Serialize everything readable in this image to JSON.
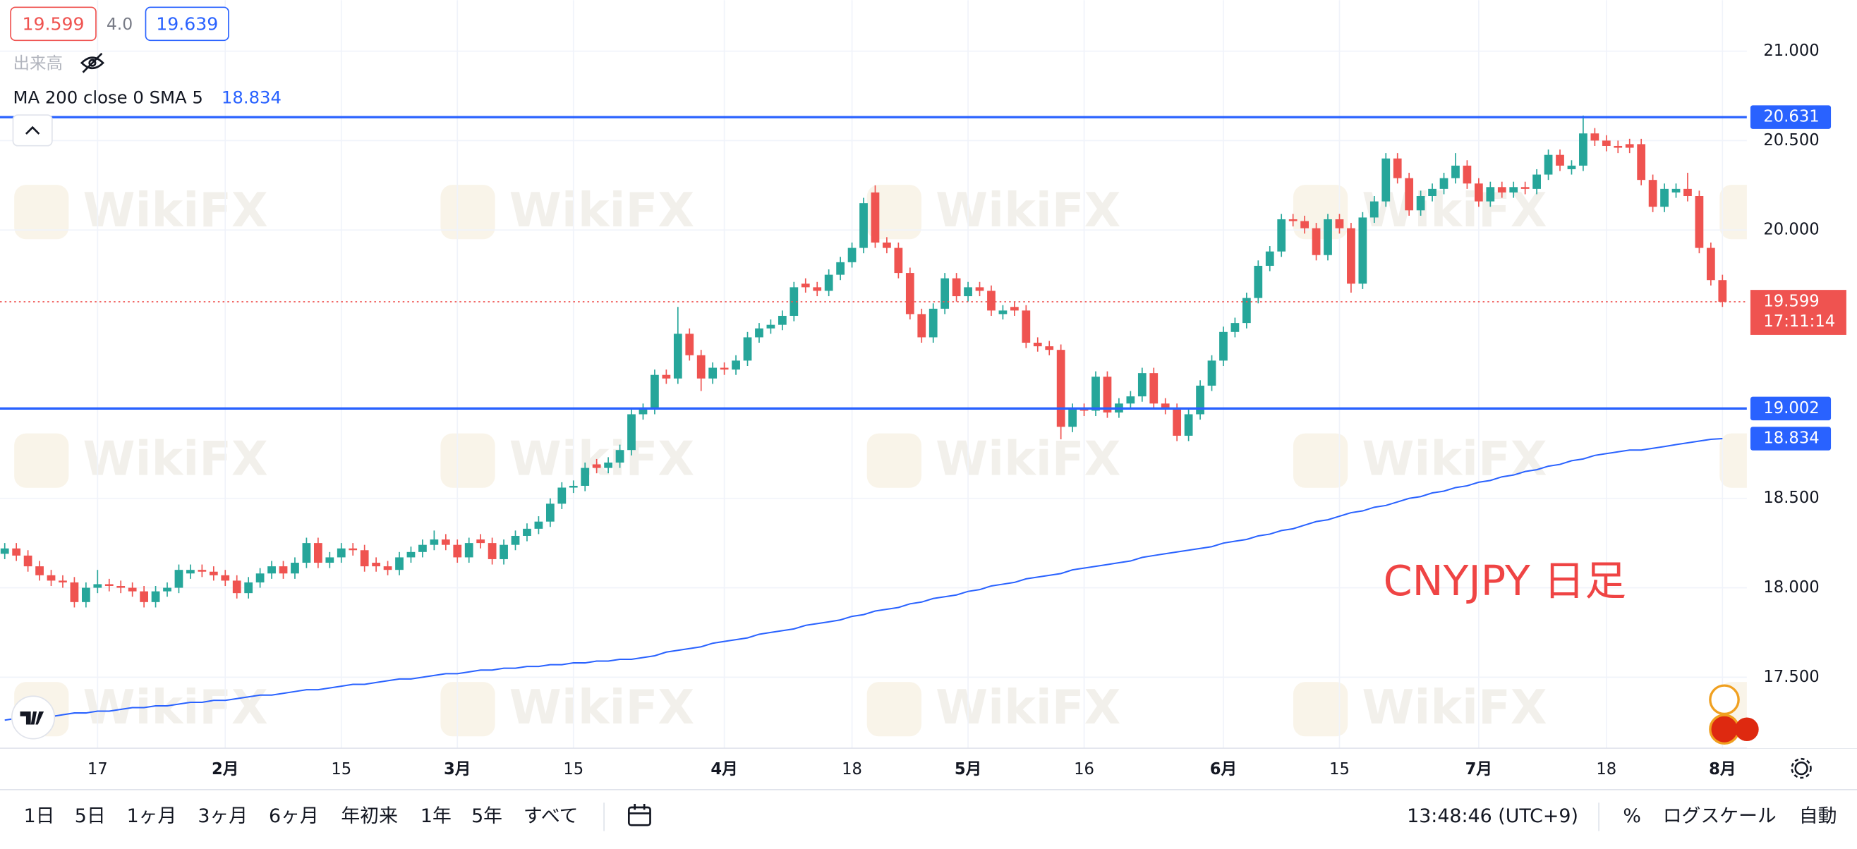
{
  "header": {
    "bid": "19.599",
    "spread": "4.0",
    "ask": "19.639",
    "volume_label": "出来高",
    "indicator_label": "MA 200 close 0 SMA 5",
    "indicator_value": "18.834"
  },
  "watermark": "WikiFX",
  "toolbar": {
    "ranges": [
      "1日",
      "5日",
      "1ヶ月",
      "3ヶ月",
      "6ヶ月",
      "年初来",
      "1年",
      "5年",
      "すべて"
    ],
    "time": "13:48:46 (UTC+9)",
    "percent": "%",
    "log": "ログスケール",
    "auto": "自動"
  },
  "chart_data": {
    "type": "candlestick",
    "annotation": "CNYJPY 日足",
    "up_color": "#26a69a",
    "down_color": "#ef5350",
    "grid": true,
    "ylim": [
      17.103,
      21.285
    ],
    "yticks": [
      {
        "value": 17.5,
        "label": "17.500"
      },
      {
        "value": 18,
        "label": "18.000"
      },
      {
        "value": 18.5,
        "label": "18.500"
      },
      {
        "value": 20,
        "label": "20.000"
      },
      {
        "value": 20.5,
        "label": "20.500"
      },
      {
        "value": 21,
        "label": "21.000"
      }
    ],
    "categories": [
      null,
      null,
      null,
      null,
      null,
      null,
      null,
      null,
      "17",
      null,
      null,
      null,
      null,
      null,
      null,
      null,
      null,
      null,
      null,
      "2月",
      null,
      null,
      null,
      null,
      null,
      null,
      null,
      null,
      null,
      "15",
      null,
      null,
      null,
      null,
      null,
      null,
      null,
      null,
      null,
      "3月",
      null,
      null,
      null,
      null,
      null,
      null,
      null,
      null,
      null,
      "15",
      null,
      null,
      null,
      null,
      null,
      null,
      null,
      null,
      null,
      null,
      null,
      null,
      "4月",
      null,
      null,
      null,
      null,
      null,
      null,
      null,
      null,
      null,
      null,
      "18",
      null,
      null,
      null,
      null,
      null,
      null,
      null,
      null,
      null,
      "5月",
      null,
      null,
      null,
      null,
      null,
      null,
      null,
      null,
      null,
      "16",
      null,
      null,
      null,
      null,
      null,
      null,
      null,
      null,
      null,
      null,
      null,
      "6月",
      null,
      null,
      null,
      null,
      null,
      null,
      null,
      null,
      null,
      "15",
      null,
      null,
      null,
      null,
      null,
      null,
      null,
      null,
      null,
      null,
      null,
      "7月",
      null,
      null,
      null,
      null,
      null,
      null,
      null,
      null,
      null,
      null,
      "18",
      null,
      null,
      null,
      null,
      null,
      null,
      null,
      null,
      null,
      "8月"
    ],
    "open": [
      18.19,
      18.22,
      18.18,
      18.12,
      18.07,
      18.04,
      18.03,
      17.92,
      18.0,
      18.02,
      18.01,
      18.0,
      17.98,
      17.92,
      17.98,
      18.0,
      18.08,
      18.1,
      18.09,
      18.07,
      18.04,
      17.97,
      18.03,
      18.08,
      18.12,
      18.08,
      18.14,
      18.25,
      18.14,
      18.17,
      18.22,
      18.21,
      18.14,
      18.12,
      18.1,
      18.17,
      18.2,
      18.24,
      18.27,
      18.24,
      18.17,
      18.27,
      18.25,
      18.16,
      18.24,
      18.29,
      18.33,
      18.37,
      18.47,
      18.56,
      18.57,
      18.69,
      18.67,
      18.7,
      18.77,
      18.97,
      19.0,
      19.19,
      19.17,
      19.42,
      19.3,
      19.17,
      19.23,
      19.22,
      19.27,
      19.4,
      19.45,
      19.47,
      19.52,
      19.7,
      19.68,
      19.66,
      19.75,
      19.82,
      19.9,
      20.21,
      19.93,
      19.9,
      19.76,
      19.53,
      19.4,
      19.56,
      19.73,
      19.63,
      19.68,
      19.66,
      19.53,
      19.57,
      19.55,
      19.37,
      19.35,
      19.33,
      18.9,
      19.0,
      18.99,
      19.18,
      18.98,
      19.03,
      19.07,
      19.2,
      19.03,
      19.0,
      18.85,
      18.97,
      19.13,
      19.27,
      19.43,
      19.48,
      19.62,
      19.8,
      19.88,
      20.06,
      20.05,
      20.01,
      19.86,
      20.06,
      20.01,
      19.7,
      20.07,
      20.16,
      20.4,
      20.29,
      20.11,
      20.19,
      20.23,
      20.29,
      20.36,
      20.26,
      20.16,
      20.24,
      20.21,
      20.24,
      20.23,
      20.31,
      20.42,
      20.34,
      20.36,
      20.54,
      20.5,
      20.47,
      20.48,
      20.48,
      20.28,
      20.13,
      20.21,
      20.23,
      20.19,
      19.9,
      19.72
    ],
    "high": [
      18.25,
      18.25,
      18.21,
      18.15,
      18.1,
      18.07,
      18.06,
      18.03,
      18.1,
      18.05,
      18.04,
      18.03,
      18.01,
      18.01,
      18.03,
      18.13,
      18.13,
      18.13,
      18.12,
      18.1,
      18.07,
      18.06,
      18.11,
      18.15,
      18.15,
      18.17,
      18.28,
      18.28,
      18.2,
      18.25,
      18.25,
      18.24,
      18.17,
      18.15,
      18.2,
      18.23,
      18.27,
      18.32,
      18.3,
      18.27,
      18.28,
      18.3,
      18.28,
      18.27,
      18.32,
      18.36,
      18.4,
      18.5,
      18.59,
      18.6,
      18.7,
      18.72,
      18.73,
      18.8,
      19.0,
      19.03,
      19.22,
      19.22,
      19.57,
      19.45,
      19.33,
      19.26,
      19.26,
      19.3,
      19.43,
      19.48,
      19.5,
      19.55,
      19.71,
      19.73,
      19.71,
      19.78,
      19.85,
      19.93,
      20.18,
      20.25,
      19.96,
      19.93,
      19.79,
      19.56,
      19.59,
      19.76,
      19.76,
      19.71,
      19.71,
      19.69,
      19.58,
      19.6,
      19.58,
      19.4,
      19.38,
      19.36,
      19.03,
      19.03,
      19.21,
      19.21,
      19.06,
      19.1,
      19.23,
      19.23,
      19.06,
      19.03,
      19.0,
      19.16,
      19.3,
      19.46,
      19.51,
      19.65,
      19.83,
      19.91,
      20.09,
      20.09,
      20.08,
      20.04,
      20.09,
      20.09,
      20.04,
      20.1,
      20.19,
      20.43,
      20.43,
      20.32,
      20.22,
      20.26,
      20.32,
      20.43,
      20.39,
      20.29,
      20.27,
      20.27,
      20.27,
      20.27,
      20.34,
      20.45,
      20.45,
      20.39,
      20.64,
      20.57,
      20.53,
      20.5,
      20.51,
      20.51,
      20.31,
      20.26,
      20.26,
      20.32,
      20.22,
      19.93,
      19.75
    ],
    "low": [
      18.16,
      18.15,
      18.09,
      18.04,
      18.01,
      18.0,
      17.89,
      17.89,
      17.97,
      17.98,
      17.97,
      17.95,
      17.89,
      17.89,
      17.95,
      17.97,
      18.05,
      18.06,
      18.04,
      18.01,
      17.94,
      17.94,
      18.0,
      18.05,
      18.05,
      18.05,
      18.11,
      18.11,
      18.11,
      18.14,
      18.18,
      18.09,
      18.09,
      18.07,
      18.07,
      18.14,
      18.17,
      18.21,
      18.21,
      18.14,
      18.14,
      18.22,
      18.13,
      18.13,
      18.21,
      18.26,
      18.3,
      18.34,
      18.44,
      18.53,
      18.54,
      18.64,
      18.64,
      18.67,
      18.74,
      18.94,
      18.97,
      19.14,
      19.14,
      19.27,
      19.1,
      19.14,
      19.19,
      19.19,
      19.24,
      19.37,
      19.42,
      19.44,
      19.49,
      19.65,
      19.63,
      19.63,
      19.72,
      19.79,
      19.87,
      19.9,
      19.87,
      19.73,
      19.5,
      19.37,
      19.37,
      19.53,
      19.6,
      19.6,
      19.63,
      19.52,
      19.5,
      19.52,
      19.34,
      19.32,
      19.3,
      18.83,
      18.87,
      18.96,
      18.96,
      18.95,
      18.95,
      19.0,
      19.04,
      19.0,
      18.97,
      18.82,
      18.82,
      18.94,
      19.1,
      19.24,
      19.4,
      19.45,
      19.59,
      19.77,
      19.85,
      20.02,
      19.98,
      19.83,
      19.83,
      19.98,
      19.65,
      19.67,
      20.04,
      20.13,
      20.26,
      20.08,
      20.08,
      20.16,
      20.2,
      20.26,
      20.23,
      20.13,
      20.13,
      20.18,
      20.18,
      20.2,
      20.2,
      20.28,
      20.33,
      20.31,
      20.33,
      20.47,
      20.44,
      20.43,
      20.43,
      20.25,
      20.1,
      20.1,
      20.18,
      20.16,
      19.87,
      19.69,
      19.57
    ],
    "close": [
      18.22,
      18.18,
      18.12,
      18.07,
      18.04,
      18.03,
      17.92,
      18.0,
      18.02,
      18.01,
      18.0,
      17.98,
      17.92,
      17.98,
      18.0,
      18.1,
      18.1,
      18.09,
      18.07,
      18.04,
      17.97,
      18.03,
      18.08,
      18.12,
      18.08,
      18.14,
      18.25,
      18.14,
      18.17,
      18.22,
      18.21,
      18.12,
      18.12,
      18.1,
      18.17,
      18.2,
      18.24,
      18.27,
      18.24,
      18.17,
      18.25,
      18.25,
      18.16,
      18.24,
      18.29,
      18.33,
      18.37,
      18.47,
      18.56,
      18.57,
      18.67,
      18.67,
      18.7,
      18.77,
      18.97,
      19.0,
      19.19,
      19.17,
      19.42,
      19.3,
      19.17,
      19.23,
      19.22,
      19.27,
      19.4,
      19.45,
      19.47,
      19.52,
      19.68,
      19.68,
      19.66,
      19.75,
      19.82,
      19.9,
      20.15,
      19.93,
      19.9,
      19.76,
      19.53,
      19.4,
      19.56,
      19.73,
      19.63,
      19.68,
      19.66,
      19.55,
      19.55,
      19.55,
      19.37,
      19.35,
      19.33,
      18.9,
      19.0,
      18.99,
      19.18,
      18.98,
      19.03,
      19.07,
      19.2,
      19.03,
      19.0,
      18.85,
      18.97,
      19.13,
      19.27,
      19.43,
      19.48,
      19.62,
      19.8,
      19.88,
      20.06,
      20.05,
      20.01,
      19.86,
      20.06,
      20.01,
      19.7,
      20.07,
      20.16,
      20.4,
      20.29,
      20.11,
      20.19,
      20.23,
      20.29,
      20.36,
      20.26,
      20.16,
      20.24,
      20.21,
      20.24,
      20.23,
      20.31,
      20.42,
      20.36,
      20.36,
      20.54,
      20.5,
      20.47,
      20.46,
      20.46,
      20.28,
      20.13,
      20.23,
      20.23,
      20.19,
      19.9,
      19.72,
      19.599
    ],
    "ma": {
      "color": "#2962ff",
      "values": [
        17.26,
        17.27,
        17.27,
        17.28,
        17.28,
        17.29,
        17.3,
        17.3,
        17.31,
        17.31,
        17.32,
        17.33,
        17.33,
        17.34,
        17.34,
        17.35,
        17.36,
        17.36,
        17.37,
        17.37,
        17.38,
        17.39,
        17.4,
        17.4,
        17.41,
        17.42,
        17.43,
        17.43,
        17.44,
        17.45,
        17.46,
        17.46,
        17.47,
        17.48,
        17.49,
        17.49,
        17.5,
        17.51,
        17.52,
        17.52,
        17.53,
        17.54,
        17.54,
        17.55,
        17.55,
        17.56,
        17.56,
        17.57,
        17.57,
        17.58,
        17.58,
        17.59,
        17.59,
        17.6,
        17.6,
        17.61,
        17.62,
        17.64,
        17.65,
        17.66,
        17.67,
        17.69,
        17.7,
        17.71,
        17.72,
        17.74,
        17.75,
        17.76,
        17.77,
        17.79,
        17.8,
        17.81,
        17.82,
        17.84,
        17.85,
        17.87,
        17.88,
        17.89,
        17.91,
        17.92,
        17.94,
        17.95,
        17.96,
        17.98,
        17.99,
        18.01,
        18.02,
        18.03,
        18.05,
        18.06,
        18.07,
        18.08,
        18.1,
        18.11,
        18.12,
        18.13,
        18.14,
        18.15,
        18.17,
        18.18,
        18.19,
        18.2,
        18.21,
        18.22,
        18.23,
        18.25,
        18.26,
        18.27,
        18.29,
        18.3,
        18.32,
        18.33,
        18.35,
        18.37,
        18.38,
        18.4,
        18.42,
        18.43,
        18.45,
        18.46,
        18.48,
        18.5,
        18.51,
        18.53,
        18.54,
        18.56,
        18.57,
        18.59,
        18.6,
        18.62,
        18.63,
        18.65,
        18.66,
        18.68,
        18.69,
        18.71,
        18.72,
        18.74,
        18.75,
        18.76,
        18.77,
        18.77,
        18.78,
        18.79,
        18.8,
        18.81,
        18.82,
        18.83,
        18.834
      ],
      "last": 18.834
    },
    "price_lines": [
      {
        "value": 20.631,
        "color": "#2962ff"
      },
      {
        "value": 19.002,
        "color": "#2962ff"
      }
    ],
    "last_price": {
      "value": 19.599,
      "countdown": "17:11:14",
      "color": "#ef5350"
    }
  }
}
